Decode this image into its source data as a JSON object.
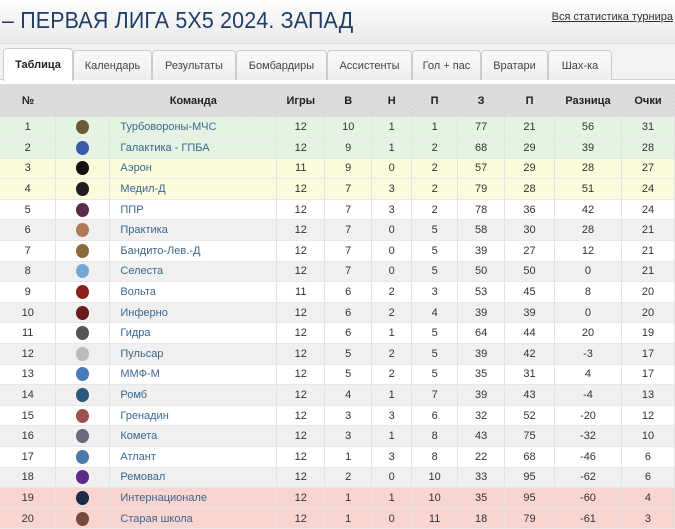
{
  "header": {
    "title": "– ПЕРВАЯ ЛИГА 5Х5 2024. ЗАПАД",
    "stats_link": "Вся статистика турнира"
  },
  "tabs": [
    {
      "label": "Таблица",
      "active": true
    },
    {
      "label": "Календарь"
    },
    {
      "label": "Результаты"
    },
    {
      "label": "Бомбардиры"
    },
    {
      "label": "Ассистенты"
    },
    {
      "label": "Гол + пас"
    },
    {
      "label": "Вратари"
    },
    {
      "label": "Шах-ка"
    }
  ],
  "columns": [
    "№",
    "",
    "Команда",
    "Игры",
    "В",
    "Н",
    "П",
    "З",
    "П",
    "Разница",
    "Очки"
  ],
  "colors": {
    "promotion": "#e5f4e2",
    "playoff": "#fcfbdc",
    "relegation": "#f9d5d2",
    "team_link": "#3a6690",
    "title": "#1f3d66"
  },
  "rows": [
    {
      "pos": "1",
      "team": "Турбовороны-МЧС",
      "logo": "#6a5a3a",
      "zone": "g",
      "vals": [
        "12",
        "10",
        "1",
        "1",
        "77",
        "21",
        "56",
        "31"
      ]
    },
    {
      "pos": "2",
      "team": "Галактика - ГПБА",
      "logo": "#3b5ca8",
      "zone": "g",
      "vals": [
        "12",
        "9",
        "1",
        "2",
        "68",
        "29",
        "39",
        "28"
      ]
    },
    {
      "pos": "3",
      "team": "Аэрон",
      "logo": "#111111",
      "zone": "y",
      "vals": [
        "11",
        "9",
        "0",
        "2",
        "57",
        "29",
        "28",
        "27"
      ]
    },
    {
      "pos": "4",
      "team": "Медил-Д",
      "logo": "#1e1e1e",
      "zone": "y",
      "vals": [
        "12",
        "7",
        "3",
        "2",
        "79",
        "28",
        "51",
        "24"
      ]
    },
    {
      "pos": "5",
      "team": "ППР",
      "logo": "#5a2a4a",
      "zone": "w",
      "vals": [
        "12",
        "7",
        "3",
        "2",
        "78",
        "36",
        "42",
        "24"
      ]
    },
    {
      "pos": "6",
      "team": "Практика",
      "logo": "#b07a5a",
      "zone": "s",
      "vals": [
        "12",
        "7",
        "0",
        "5",
        "58",
        "30",
        "28",
        "21"
      ]
    },
    {
      "pos": "7",
      "team": "Бандито-Лев.-Д",
      "logo": "#8a6a3a",
      "zone": "w",
      "vals": [
        "12",
        "7",
        "0",
        "5",
        "39",
        "27",
        "12",
        "21"
      ]
    },
    {
      "pos": "8",
      "team": "Селеста",
      "logo": "#6fa8d8",
      "zone": "s",
      "vals": [
        "12",
        "7",
        "0",
        "5",
        "50",
        "50",
        "0",
        "21"
      ]
    },
    {
      "pos": "9",
      "team": "Вольта",
      "logo": "#8a2020",
      "zone": "w",
      "vals": [
        "11",
        "6",
        "2",
        "3",
        "53",
        "45",
        "8",
        "20"
      ]
    },
    {
      "pos": "10",
      "team": "Инферно",
      "logo": "#6a1a1a",
      "zone": "s",
      "vals": [
        "12",
        "6",
        "2",
        "4",
        "39",
        "39",
        "0",
        "20"
      ]
    },
    {
      "pos": "11",
      "team": "Гидра",
      "logo": "#555555",
      "zone": "w",
      "vals": [
        "12",
        "6",
        "1",
        "5",
        "64",
        "44",
        "20",
        "19"
      ]
    },
    {
      "pos": "12",
      "team": "Пульсар",
      "logo": "#bbbbbb",
      "zone": "s",
      "vals": [
        "12",
        "5",
        "2",
        "5",
        "39",
        "42",
        "-3",
        "17"
      ]
    },
    {
      "pos": "13",
      "team": "ММФ-М",
      "logo": "#4a7ab8",
      "zone": "w",
      "vals": [
        "12",
        "5",
        "2",
        "5",
        "35",
        "31",
        "4",
        "17"
      ]
    },
    {
      "pos": "14",
      "team": "Ромб",
      "logo": "#2a5a7a",
      "zone": "s",
      "vals": [
        "12",
        "4",
        "1",
        "7",
        "39",
        "43",
        "-4",
        "13"
      ]
    },
    {
      "pos": "15",
      "team": "Гренадин",
      "logo": "#a05050",
      "zone": "w",
      "vals": [
        "12",
        "3",
        "3",
        "6",
        "32",
        "52",
        "-20",
        "12"
      ]
    },
    {
      "pos": "16",
      "team": "Комета",
      "logo": "#6a6a7a",
      "zone": "s",
      "vals": [
        "12",
        "3",
        "1",
        "8",
        "43",
        "75",
        "-32",
        "10"
      ]
    },
    {
      "pos": "17",
      "team": "Атлант",
      "logo": "#4a7aa8",
      "zone": "w",
      "vals": [
        "12",
        "1",
        "3",
        "8",
        "22",
        "68",
        "-46",
        "6"
      ]
    },
    {
      "pos": "18",
      "team": "Ремовал",
      "logo": "#5a2a8a",
      "zone": "s",
      "vals": [
        "12",
        "2",
        "0",
        "10",
        "33",
        "95",
        "-62",
        "6"
      ]
    },
    {
      "pos": "19",
      "team": "Интернационале",
      "logo": "#1a2a4a",
      "zone": "r",
      "vals": [
        "12",
        "1",
        "1",
        "10",
        "35",
        "95",
        "-60",
        "4"
      ]
    },
    {
      "pos": "20",
      "team": "Старая школа",
      "logo": "#7a4a3a",
      "zone": "r",
      "vals": [
        "12",
        "1",
        "0",
        "11",
        "18",
        "79",
        "-61",
        "3"
      ]
    }
  ]
}
